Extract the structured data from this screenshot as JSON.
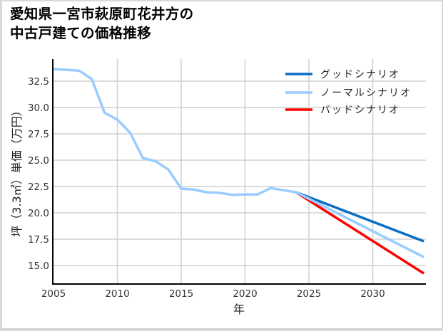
{
  "title": {
    "line1": "愛知県一宮市萩原町花井方の",
    "line2": "中古戸建ての価格推移"
  },
  "axes": {
    "xlabel": "年",
    "ylabel": "坪（3.3㎡）単価（万円）",
    "xticks": [
      "2005",
      "2010",
      "2015",
      "2020",
      "2025",
      "2030"
    ],
    "yticks": [
      "32.5",
      "30.0",
      "27.5",
      "25.0",
      "22.5",
      "20.0",
      "17.5",
      "15.0"
    ]
  },
  "legend": {
    "good": "グッドシナリオ",
    "normal": "ノーマルシナリオ",
    "bad": "バッドシナリオ"
  },
  "colors": {
    "good": "#0a6fc2",
    "normal": "#99ccff",
    "bad": "#ff0000",
    "grid": "#d0d0d0",
    "frame": "#d9d9d9"
  },
  "chart_data": {
    "type": "line",
    "title": "愛知県一宮市萩原町花井方の中古戸建ての価格推移",
    "xlabel": "年",
    "ylabel": "坪（3.3㎡）単価（万円）",
    "xlim": [
      2005,
      2034
    ],
    "ylim": [
      13.2,
      34.5
    ],
    "grid": true,
    "legend_position": "upper right",
    "series": [
      {
        "name": "ノーマルシナリオ (実績)",
        "color": "#99ccff",
        "x": [
          2005,
          2007,
          2008,
          2009,
          2010,
          2011,
          2012,
          2013,
          2014,
          2015,
          2016,
          2017,
          2018,
          2019,
          2020,
          2021,
          2022,
          2023,
          2024
        ],
        "y": [
          33.65,
          33.5,
          32.7,
          29.5,
          28.85,
          27.6,
          25.2,
          24.9,
          24.1,
          22.3,
          22.2,
          21.95,
          21.9,
          21.7,
          21.75,
          21.75,
          22.35,
          22.15,
          21.95
        ]
      },
      {
        "name": "グッドシナリオ",
        "color": "#0a6fc2",
        "x": [
          2024,
          2034
        ],
        "y": [
          21.95,
          17.3
        ]
      },
      {
        "name": "ノーマルシナリオ",
        "color": "#99ccff",
        "x": [
          2024,
          2034
        ],
        "y": [
          21.95,
          15.8
        ]
      },
      {
        "name": "バッドシナリオ",
        "color": "#ff0000",
        "x": [
          2024,
          2034
        ],
        "y": [
          21.95,
          14.25
        ]
      }
    ]
  }
}
